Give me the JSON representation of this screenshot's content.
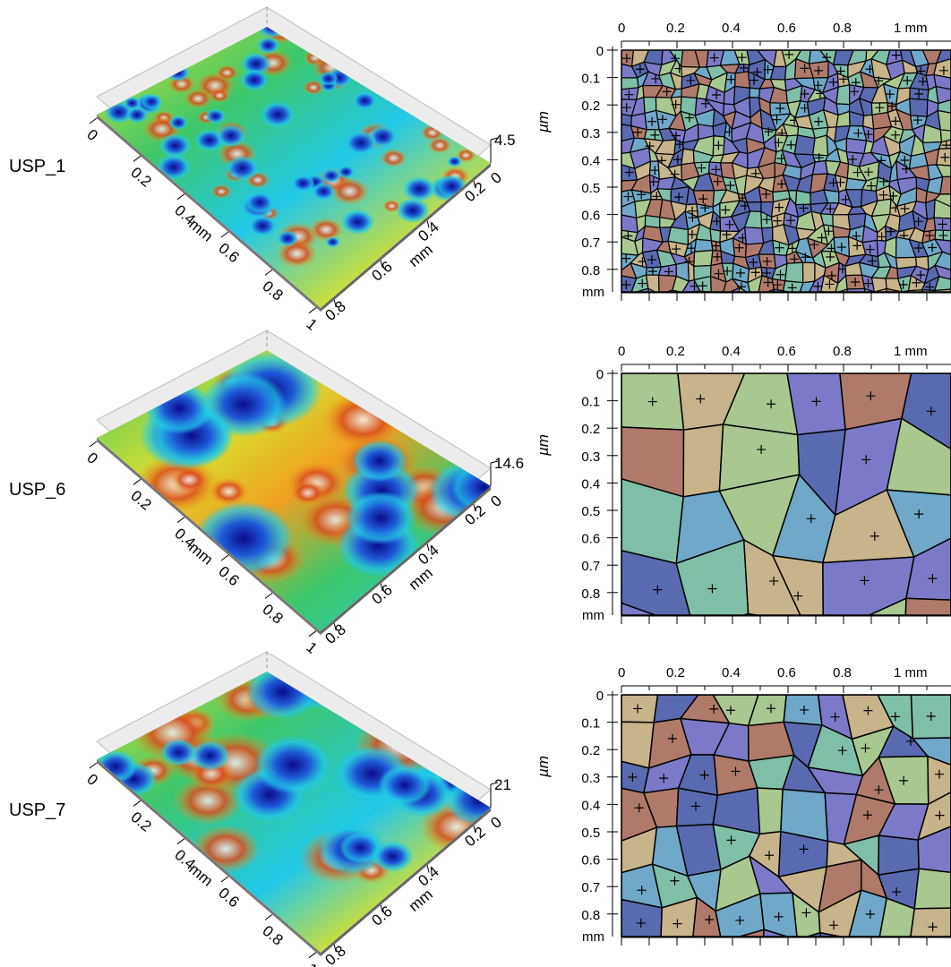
{
  "rows": [
    {
      "label": "USP_1",
      "z_max": "4.5",
      "z_unit": "µm",
      "grain_size": "fine"
    },
    {
      "label": "USP_6",
      "z_max": "14.6",
      "z_unit": "µm",
      "grain_size": "coarse"
    },
    {
      "label": "USP_7",
      "z_max": "21",
      "z_unit": "µm",
      "grain_size": "medium"
    }
  ],
  "surface_axes": {
    "x_ticks": [
      "0",
      "0.2",
      "0.4",
      "0.6",
      "0.8",
      "1"
    ],
    "y_ticks": [
      "0.2",
      "0.4",
      "0.6",
      "0.8"
    ],
    "z_zero": "0",
    "unit": "mm"
  },
  "map_axes": {
    "x_ticks": [
      "0",
      "0.2",
      "0.4",
      "0.6",
      "0.8",
      "1 mm"
    ],
    "y_ticks": [
      "0",
      "0.1",
      "0.2",
      "0.3",
      "0.4",
      "0.5",
      "0.6",
      "0.7",
      "0.8"
    ],
    "y_unit": "mm"
  },
  "colors": {
    "surface_palette": [
      "#0a0a8c",
      "#1e5bd8",
      "#22c8e8",
      "#3ec86a",
      "#d8e030",
      "#f0a020",
      "#d84a1a",
      "#f2f2f2"
    ],
    "grain_palette": [
      "#7c7ac8",
      "#6fa8c8",
      "#7fbfa8",
      "#c8b48a",
      "#b07a6a",
      "#a8c890",
      "#5a6ab0"
    ],
    "boundary": "#000000"
  }
}
